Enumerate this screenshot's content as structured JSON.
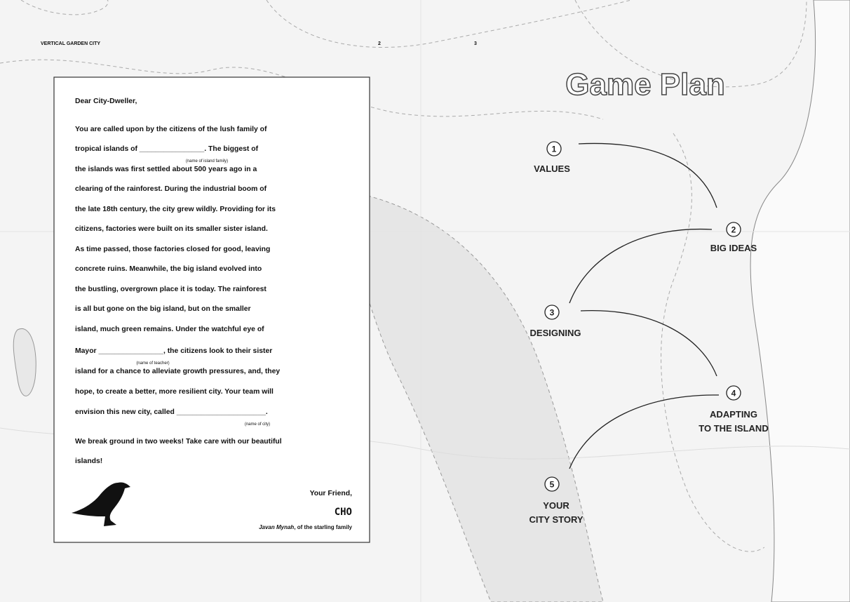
{
  "header": {
    "title": "VERTICAL GARDEN CITY",
    "page_left": "2",
    "page_right": "3"
  },
  "letter": {
    "lines": [
      "Dear City-Dweller,",
      "You are called upon by the citizens of the lush family of",
      "tropical islands of ________________. The biggest of",
      "the islands was first settled about 500 years ago in a",
      "clearing of the rainforest. During the industrial boom of",
      "the late 18th century, the city grew wildly. Providing for its",
      "citizens, factories were built on its smaller sister island.",
      "As time passed, those factories closed for good, leaving",
      "concrete ruins. Meanwhile, the big island evolved into",
      "the bustling, overgrown place it is today. The rainforest",
      "is all but gone on the big island, but on the smaller",
      "island, much green remains. Under the watchful eye of",
      "Mayor ________________, the citizens look to their sister",
      "island for a chance to alleviate growth pressures, and, they",
      "hope, to create a better, more resilient city. Your team will",
      "envision this new city, called ______________________.",
      "We break ground in two weeks! Take care with our beautiful",
      "islands!"
    ],
    "captions": [
      "(name of island family)",
      "(name of teacher)",
      "(name of city)"
    ],
    "closing": "Your Friend,",
    "signature": "CHO",
    "signer_name": "Javan Mynah",
    "signer_note": ", of the starling family"
  },
  "game_plan": {
    "title": "Game Plan",
    "steps": [
      {
        "number": "1",
        "label": [
          "VALUES"
        ]
      },
      {
        "number": "2",
        "label": [
          "BIG IDEAS"
        ]
      },
      {
        "number": "3",
        "label": [
          "DESIGNING"
        ]
      },
      {
        "number": "4",
        "label": [
          "ADAPTING",
          "TO THE ISLAND"
        ]
      },
      {
        "number": "5",
        "label": [
          "YOUR",
          "CITY STORY"
        ]
      }
    ]
  }
}
